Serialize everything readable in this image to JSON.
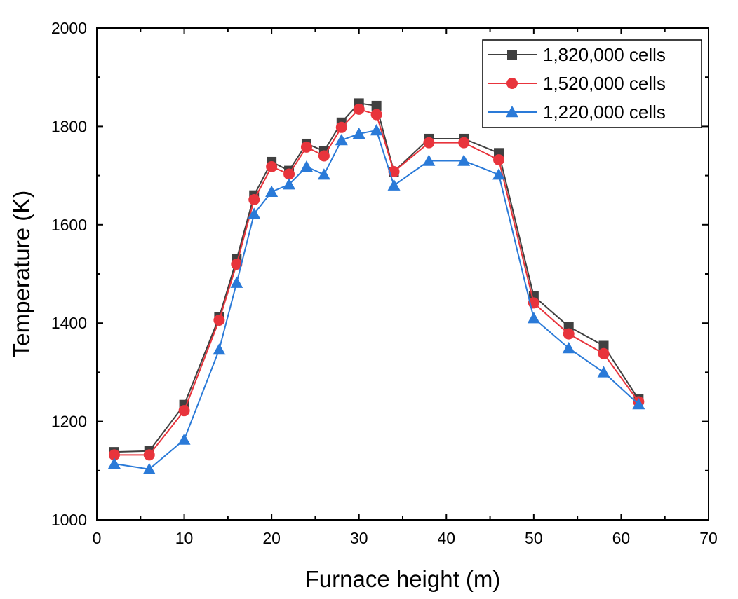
{
  "chart_data": {
    "type": "line",
    "title": "",
    "xlabel": "Furnace height (m)",
    "ylabel": "Temperature (K)",
    "xlim": [
      0,
      70
    ],
    "ylim": [
      1000,
      2000
    ],
    "xticks": [
      "0",
      "10",
      "20",
      "30",
      "40",
      "50",
      "60",
      "70"
    ],
    "yticks": [
      "1000",
      "1200",
      "1400",
      "1600",
      "1800",
      "2000"
    ],
    "grid": false,
    "legend_position": "top-right",
    "x": [
      2,
      6,
      10,
      14,
      16,
      18,
      20,
      22,
      24,
      26,
      28,
      30,
      32,
      34,
      38,
      42,
      46,
      50,
      54,
      58,
      62
    ],
    "series": [
      {
        "name": "1,820,000 cells",
        "color": "#404040",
        "marker": "square",
        "values": [
          1138,
          1140,
          1234,
          1412,
          1530,
          1660,
          1728,
          1710,
          1765,
          1750,
          1808,
          1847,
          1842,
          1708,
          1775,
          1775,
          1746,
          1455,
          1393,
          1354,
          1245
        ]
      },
      {
        "name": "1,520,000 cells",
        "color": "#e8343c",
        "marker": "circle",
        "values": [
          1132,
          1132,
          1222,
          1406,
          1520,
          1651,
          1718,
          1703,
          1758,
          1740,
          1798,
          1835,
          1824,
          1708,
          1767,
          1767,
          1732,
          1441,
          1378,
          1338,
          1240
        ]
      },
      {
        "name": "1,220,000 cells",
        "color": "#2a7ad8",
        "marker": "triangle",
        "values": [
          1114,
          1103,
          1163,
          1346,
          1482,
          1622,
          1667,
          1682,
          1718,
          1702,
          1772,
          1785,
          1792,
          1680,
          1730,
          1730,
          1702,
          1410,
          1349,
          1300,
          1235
        ]
      }
    ]
  }
}
